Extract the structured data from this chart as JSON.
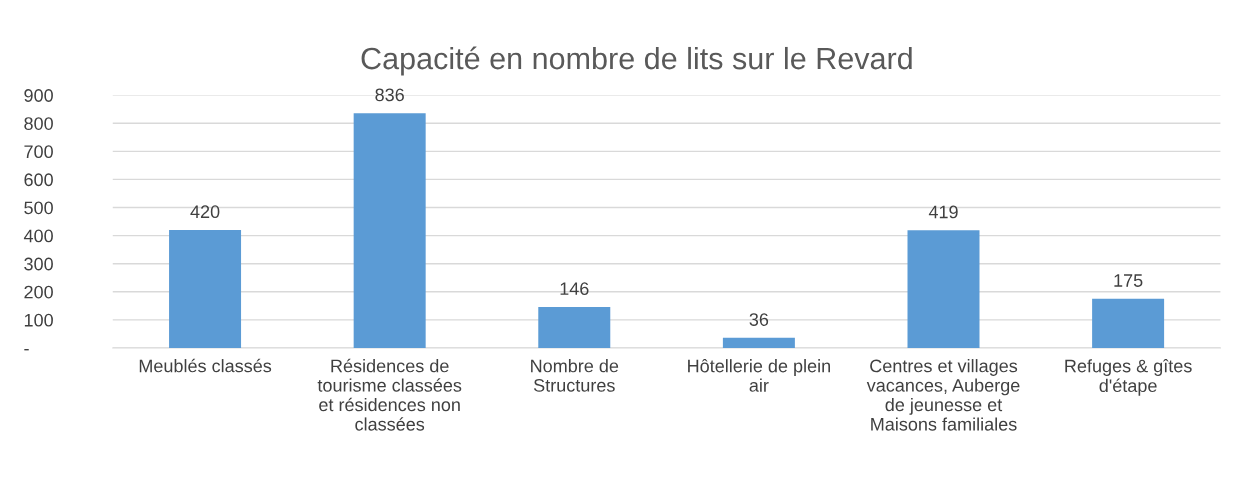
{
  "chart_data": {
    "type": "bar",
    "title": "Capacité en nombre de lits sur le Revard",
    "categories": [
      "Meublés classés",
      "Résidences de\ntourisme classées\net résidences non\nclassées",
      "Nombre de\nStructures",
      "Hôtellerie de plein\nair",
      "Centres et villages\nvacances, Auberge\nde jeunesse et\nMaisons familiales",
      "Refuges & gîtes\nd'étape"
    ],
    "values": [
      420,
      836,
      146,
      36,
      419,
      175
    ],
    "color": "#5b9bd5",
    "ylim": [
      0,
      900
    ],
    "yticks": [
      {
        "value": 0,
        "label": "-"
      },
      100,
      200,
      300,
      400,
      500,
      600,
      700,
      800,
      900
    ],
    "grid": "y",
    "data_labels": true
  }
}
